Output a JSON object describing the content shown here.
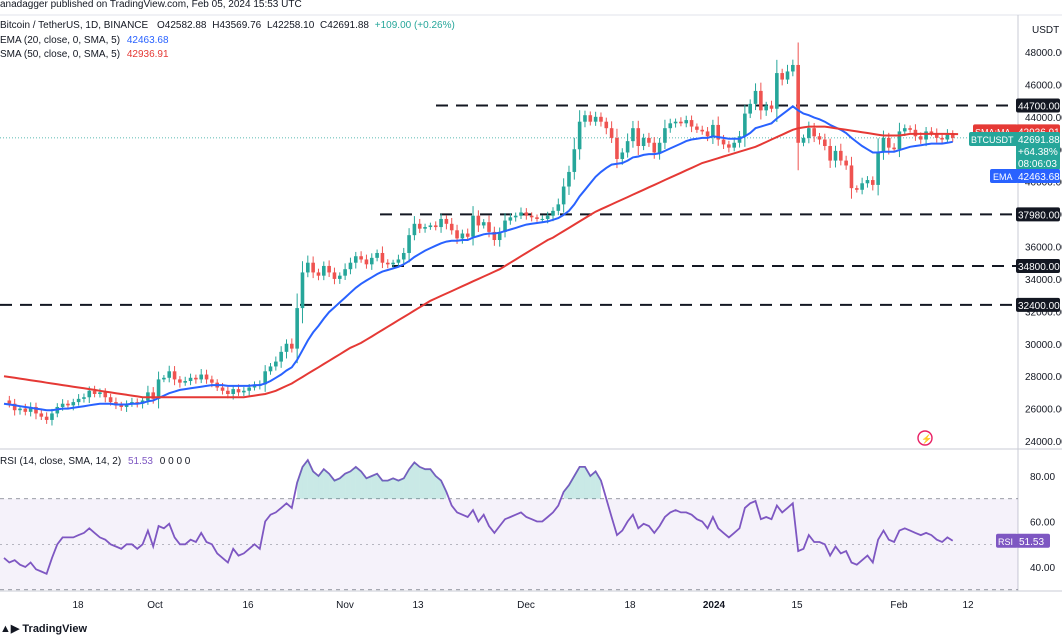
{
  "header": {
    "published": "anadagger published on TradingView.com, Feb 05, 2024 15:53 UTC",
    "symbol_line": "Bitcoin / TetherUS, 1D, BINANCE",
    "o": "O42582.88",
    "h": "H43569.76",
    "l": "L42258.10",
    "c": "C42691.88",
    "chg": "+109.00 (+0.26%)",
    "ema_label": "EMA (20, close, 0, SMA, 5)",
    "ema_value": "42463.68",
    "sma_label": "SMA (50, close, 0, SMA, 5)",
    "sma_value": "42936.91",
    "rsi_label": "RSI (14, close, SMA, 14, 2)",
    "rsi_value": "51.53",
    "rsi_extra": "0 0 0 0",
    "currency": "USDT"
  },
  "footer": {
    "brand": "TradingView"
  },
  "colors": {
    "up": "#26a69a",
    "down": "#ef5350",
    "ema": "#2962ff",
    "sma": "#e53935",
    "rsi": "#7e57c2",
    "level": "#131722",
    "tag_bg": "#131722"
  },
  "chart_data": [
    {
      "type": "candlestick",
      "title": "Bitcoin / TetherUS, 1D, BINANCE",
      "x_ticks": [
        "18",
        "Oct",
        "16",
        "Nov",
        "13",
        "Dec",
        "18",
        "2024",
        "15",
        "Feb",
        "12"
      ],
      "y_ticks": [
        24000,
        26000,
        28000,
        30000,
        32000,
        34000,
        36000,
        38000,
        40000,
        42000,
        44000,
        46000,
        48000
      ],
      "ylim": [
        23000,
        49500
      ],
      "levels": [
        {
          "value": 44700,
          "label": "44700.00"
        },
        {
          "value": 37980,
          "label": "37980.00"
        },
        {
          "value": 34800,
          "label": "34800.00"
        },
        {
          "value": 32400,
          "label": "32400.00"
        }
      ],
      "price_tags": [
        {
          "name": "SMA:MA",
          "label": "42936.91",
          "color": "#e53935"
        },
        {
          "name": "BTCUSDT",
          "label": "42691.88",
          "sub1": "+64.38%",
          "sub2": "08:06:03",
          "color": "#26a69a"
        },
        {
          "name": "EMA",
          "label": "42463.68",
          "color": "#2962ff"
        }
      ],
      "price_path": [
        26500,
        26300,
        25900,
        26000,
        25800,
        26100,
        25700,
        25500,
        25300,
        25700,
        26100,
        26300,
        26200,
        26400,
        26600,
        26700,
        27100,
        26900,
        27000,
        26700,
        26400,
        26200,
        26100,
        26300,
        26400,
        26300,
        26500,
        27000,
        26600,
        27800,
        27900,
        28300,
        27800,
        27600,
        27700,
        27900,
        27800,
        28100,
        27800,
        27600,
        27300,
        27100,
        26900,
        27200,
        27000,
        27100,
        27300,
        27400,
        27500,
        28300,
        28600,
        28900,
        29500,
        30000,
        29700,
        32200,
        34400,
        35000,
        34400,
        34200,
        34800,
        34400,
        34000,
        34200,
        34600,
        35000,
        35400,
        35200,
        34900,
        35300,
        35600,
        35000,
        34900,
        35000,
        35200,
        35600,
        36700,
        37400,
        37100,
        37200,
        37300,
        37200,
        37700,
        37400,
        37000,
        36500,
        36800,
        36600,
        37900,
        37300,
        37500,
        36900,
        36400,
        36900,
        37600,
        37800,
        37900,
        38100,
        37900,
        37800,
        37700,
        37700,
        37900,
        38200,
        38600,
        39700,
        40600,
        42000,
        43700,
        44100,
        43700,
        44000,
        43700,
        43300,
        42700,
        41400,
        41800,
        42500,
        43300,
        42200,
        42700,
        42400,
        41800,
        42400,
        43300,
        43600,
        43700,
        43600,
        43800,
        43400,
        43200,
        43100,
        42800,
        43500,
        42600,
        42300,
        42100,
        42400,
        42800,
        44200,
        44800,
        45600,
        44400,
        44700,
        44500,
        46700,
        46300,
        46800,
        47200,
        42400,
        42700,
        43300,
        42800,
        42600,
        42200,
        41300,
        41900,
        41300,
        41000,
        39600,
        39500,
        39900,
        40100,
        39800,
        41800,
        42700,
        42100,
        42000,
        43100,
        43300,
        43200,
        42800,
        42600,
        43100,
        43000,
        42700,
        42600,
        42900,
        42700
      ],
      "series": [
        {
          "name": "EMA (20, close, 0, SMA, 5)",
          "color": "#2962ff",
          "values": [
            26300,
            26250,
            26200,
            26150,
            26100,
            26050,
            26000,
            25950,
            25900,
            25900,
            25950,
            26000,
            26000,
            26050,
            26100,
            26150,
            26200,
            26250,
            26300,
            26300,
            26300,
            26250,
            26250,
            26250,
            26300,
            26300,
            26350,
            26450,
            26500,
            26650,
            26800,
            26950,
            27050,
            27150,
            27200,
            27250,
            27300,
            27350,
            27400,
            27450,
            27450,
            27450,
            27400,
            27400,
            27400,
            27400,
            27400,
            27450,
            27450,
            27550,
            27700,
            27900,
            28100,
            28350,
            28550,
            29000,
            29600,
            30200,
            30700,
            31100,
            31550,
            31950,
            32250,
            32550,
            32850,
            33150,
            33450,
            33700,
            33900,
            34100,
            34300,
            34450,
            34550,
            34650,
            34750,
            34900,
            35100,
            35350,
            35550,
            35750,
            35900,
            36050,
            36200,
            36300,
            36350,
            36350,
            36400,
            36400,
            36550,
            36650,
            36750,
            36800,
            36800,
            36850,
            36950,
            37050,
            37150,
            37250,
            37350,
            37400,
            37450,
            37500,
            37550,
            37650,
            37750,
            37950,
            38200,
            38600,
            39100,
            39500,
            39900,
            40300,
            40600,
            40850,
            41050,
            41100,
            41150,
            41300,
            41500,
            41550,
            41650,
            41700,
            41700,
            41750,
            41900,
            42050,
            42200,
            42350,
            42500,
            42600,
            42650,
            42700,
            42700,
            42800,
            42750,
            42700,
            42650,
            42650,
            42650,
            42800,
            43000,
            43300,
            43400,
            43500,
            43600,
            43900,
            44150,
            44400,
            44650,
            44400,
            44200,
            44100,
            43950,
            43850,
            43700,
            43500,
            43350,
            43200,
            43000,
            42700,
            42450,
            42200,
            42000,
            41800,
            41800,
            41850,
            41850,
            41850,
            41950,
            42050,
            42150,
            42200,
            42250,
            42300,
            42350,
            42350,
            42350,
            42400,
            42460
          ]
        },
        {
          "name": "SMA (50, close, 0, SMA, 5)",
          "color": "#e53935",
          "values": [
            28000,
            27950,
            27900,
            27850,
            27800,
            27750,
            27700,
            27650,
            27600,
            27550,
            27500,
            27450,
            27400,
            27350,
            27300,
            27250,
            27200,
            27150,
            27100,
            27050,
            27000,
            26950,
            26900,
            26850,
            26800,
            26750,
            26700,
            26700,
            26700,
            26700,
            26700,
            26700,
            26700,
            26700,
            26700,
            26700,
            26700,
            26700,
            26700,
            26700,
            26700,
            26700,
            26700,
            26700,
            26700,
            26700,
            26750,
            26800,
            26850,
            26900,
            27000,
            27100,
            27250,
            27400,
            27550,
            27750,
            27950,
            28150,
            28350,
            28550,
            28750,
            28950,
            29150,
            29350,
            29550,
            29750,
            29900,
            30050,
            30250,
            30450,
            30650,
            30850,
            31050,
            31250,
            31450,
            31650,
            31850,
            32050,
            32250,
            32450,
            32650,
            32800,
            32950,
            33100,
            33250,
            33400,
            33550,
            33700,
            33850,
            34000,
            34150,
            34300,
            34450,
            34600,
            34800,
            35000,
            35200,
            35400,
            35600,
            35800,
            36000,
            36200,
            36400,
            36550,
            36750,
            36950,
            37150,
            37350,
            37550,
            37750,
            37950,
            38150,
            38300,
            38450,
            38600,
            38750,
            38900,
            39050,
            39200,
            39350,
            39500,
            39650,
            39800,
            39950,
            40100,
            40250,
            40400,
            40550,
            40700,
            40850,
            41000,
            41150,
            41250,
            41350,
            41450,
            41550,
            41650,
            41750,
            41850,
            41950,
            42050,
            42150,
            42300,
            42450,
            42600,
            42750,
            42900,
            43050,
            43200,
            43300,
            43350,
            43400,
            43400,
            43400,
            43400,
            43350,
            43300,
            43250,
            43200,
            43150,
            43100,
            43050,
            43000,
            42950,
            42900,
            42850,
            42850,
            42850,
            42850,
            42900,
            42950,
            42950,
            42950,
            42950,
            42950,
            42950,
            42950,
            42950,
            42940,
            42937
          ]
        }
      ]
    },
    {
      "type": "line",
      "title": "RSI (14, close, SMA, 14, 2)",
      "y_ticks": [
        40,
        60,
        80
      ],
      "ylim": [
        30,
        92
      ],
      "bands": [
        30,
        70
      ],
      "value_tag": "51.53",
      "tag_name": "RSI",
      "series": [
        {
          "name": "RSI",
          "color": "#7e57c2",
          "values": [
            44,
            42,
            43,
            41,
            40,
            42,
            39,
            38,
            37,
            44,
            50,
            53,
            53,
            53,
            54,
            55,
            57,
            55,
            53,
            52,
            50,
            49,
            48,
            50,
            50,
            48,
            50,
            56,
            49,
            58,
            57,
            59,
            53,
            50,
            50,
            52,
            51,
            55,
            51,
            50,
            46,
            44,
            42,
            48,
            45,
            46,
            48,
            50,
            48,
            60,
            63,
            64,
            66,
            68,
            66,
            77,
            84,
            87,
            82,
            80,
            83,
            81,
            78,
            79,
            81,
            82,
            84,
            82,
            79,
            80,
            81,
            78,
            78,
            79,
            78,
            79,
            83,
            86,
            84,
            83,
            83,
            80,
            78,
            73,
            67,
            64,
            63,
            62,
            65,
            60,
            63,
            58,
            55,
            58,
            61,
            62,
            63,
            64,
            62,
            61,
            60,
            60,
            62,
            64,
            67,
            73,
            76,
            80,
            84,
            84,
            80,
            82,
            78,
            70,
            62,
            54,
            56,
            60,
            63,
            57,
            59,
            58,
            55,
            58,
            62,
            64,
            65,
            64,
            64,
            63,
            61,
            60,
            57,
            62,
            57,
            55,
            53,
            55,
            57,
            66,
            68,
            69,
            61,
            62,
            61,
            67,
            64,
            66,
            68,
            47,
            48,
            54,
            51,
            51,
            50,
            45,
            49,
            46,
            47,
            42,
            41,
            43,
            45,
            42,
            52,
            56,
            52,
            51,
            56,
            57,
            56,
            55,
            54,
            55,
            54,
            52,
            51,
            53,
            51.5
          ]
        }
      ]
    }
  ]
}
